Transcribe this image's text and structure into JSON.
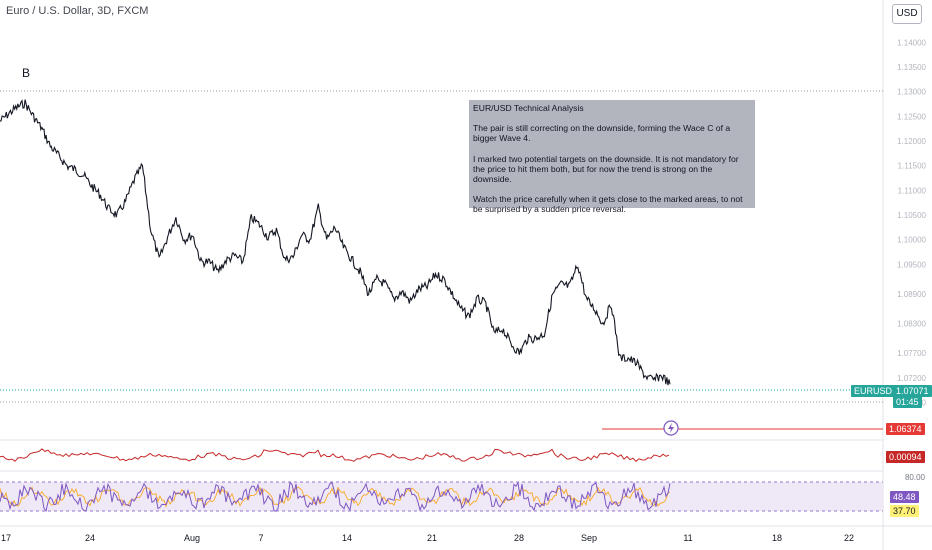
{
  "header": {
    "title": "Euro / U.S. Dollar, 3D, FXCM",
    "currency_button": "USD"
  },
  "annotations": {
    "wave_label": "B",
    "note_title": "EUR/USD Technical Analysis",
    "note_paragraphs": [
      "The pair is still correcting on the downside, forming the Wace C of a bigger Wave 4.",
      "I marked two potential targets on the downside. It is not mandatory for the price to hit them both, but for now the trend is strong on the downside.",
      "Watch the price carefully when it gets close to the marked areas, to not be surprised by a sudden price reversal."
    ]
  },
  "price_tags": {
    "symbol": "EURUSD",
    "last_price": "1.07071",
    "countdown": "01:45",
    "target_level": "1.06374",
    "osc_value": "0.00094",
    "rsi_value": "48.48",
    "rsi_signal": "37.70"
  },
  "colors": {
    "price_line": "#131722",
    "target_line": "#e53935",
    "osc_line": "#c62828",
    "rsi_line": "#7e57c2",
    "rsi_signal_line": "#f9a825",
    "rsi_band": "#ede7f6",
    "symbol_tag": "#26a69a"
  },
  "icons": {
    "alert": "lightning-alert-icon"
  },
  "chart_data": {
    "type": "line",
    "x": [
      "17",
      "24",
      "Aug",
      "7",
      "14",
      "21",
      "28",
      "Sep",
      "11",
      "18",
      "22"
    ],
    "yticks": [
      "1.14000",
      "1.13500",
      "1.13000",
      "1.12500",
      "1.12000",
      "1.11500",
      "1.11000",
      "1.10500",
      "1.10000",
      "1.09500",
      "1.08900",
      "1.08300",
      "1.07700",
      "1.07200",
      "1.06700"
    ],
    "ylim": [
      1.0655,
      1.1425
    ],
    "price_path": [
      1.124,
      1.1255,
      1.1268,
      1.1277,
      1.125,
      1.1225,
      1.119,
      1.117,
      1.115,
      1.1142,
      1.113,
      1.1108,
      1.109,
      1.1062,
      1.105,
      1.1078,
      1.112,
      1.115,
      1.102,
      1.096,
      1.1005,
      1.1045,
      1.1,
      1.101,
      1.0955,
      1.0955,
      1.0935,
      1.0958,
      1.0968,
      1.0955,
      1.1045,
      1.103,
      1.1005,
      1.102,
      1.096,
      1.0965,
      1.101,
      1.1,
      1.1065,
      1.1,
      1.1025,
      1.0985,
      1.096,
      1.0935,
      1.089,
      1.092,
      1.091,
      1.088,
      1.0895,
      1.0875,
      1.09,
      1.0905,
      1.093,
      1.092,
      1.089,
      1.086,
      1.0845,
      1.088,
      1.087,
      1.081,
      1.082,
      1.079,
      1.077,
      1.08,
      1.08,
      1.081,
      1.089,
      1.091,
      1.0905,
      1.095,
      1.088,
      1.086,
      1.083,
      1.087,
      1.076,
      1.076,
      1.075,
      1.0725,
      1.0715,
      1.0725,
      1.0707
    ],
    "target_line": 1.06374,
    "rsi_ylim": [
      20,
      90
    ],
    "rsi_levels": [
      70,
      30
    ],
    "rsi_tick": "80.00"
  }
}
